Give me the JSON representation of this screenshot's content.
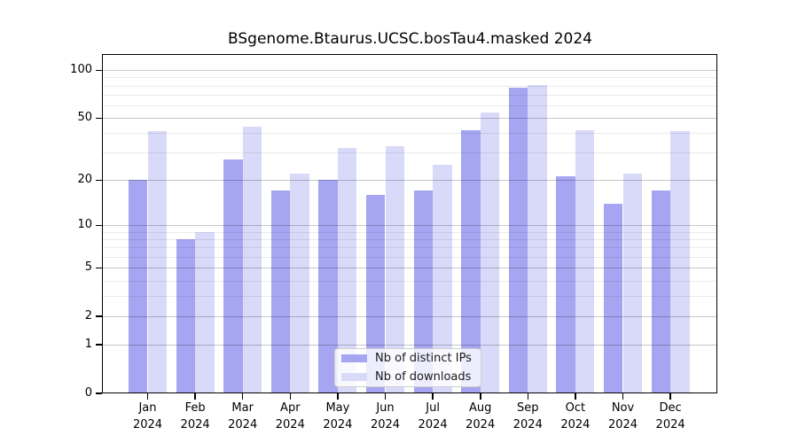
{
  "figure": {
    "title": "BSgenome.Btaurus.UCSC.bosTau4.masked 2024"
  },
  "chart_data": {
    "type": "bar",
    "title": "BSgenome.Btaurus.UCSC.bosTau4.masked 2024",
    "categories": [
      "Jan",
      "Feb",
      "Mar",
      "Apr",
      "May",
      "Jun",
      "Jul",
      "Aug",
      "Sep",
      "Oct",
      "Nov",
      "Dec"
    ],
    "year_label": "2024",
    "series": [
      {
        "name": "Nb of distinct IPs",
        "color": "#a5a5f2",
        "values": [
          20,
          8,
          27,
          17,
          20,
          16,
          17,
          42,
          77,
          21,
          14,
          17
        ]
      },
      {
        "name": "Nb of downloads",
        "color": "#d9d9f9",
        "values": [
          41,
          9,
          44,
          22,
          32,
          33,
          25,
          54,
          81,
          42,
          22,
          41
        ]
      }
    ],
    "xlabel": "",
    "ylabel": "",
    "y_scale": "log1p",
    "ylim": [
      0,
      100
    ],
    "y_major_ticks": [
      0,
      1,
      2,
      5,
      10,
      20,
      50,
      100
    ],
    "y_minor_ticks": [
      3,
      4,
      6,
      7,
      8,
      9,
      30,
      40,
      60,
      70,
      80,
      90
    ],
    "grid": true,
    "legend": {
      "position": "lower center",
      "entries": [
        "Nb of distinct IPs",
        "Nb of downloads"
      ]
    }
  }
}
